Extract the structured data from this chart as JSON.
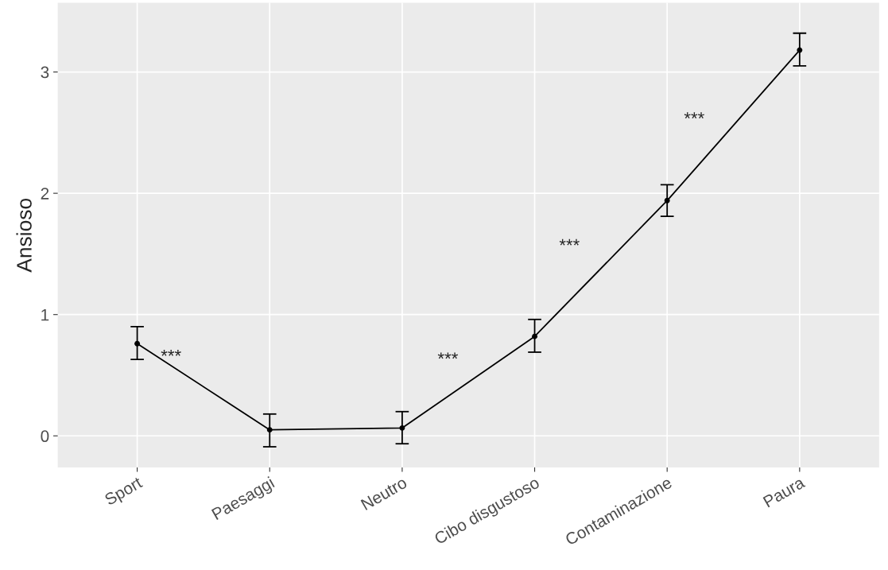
{
  "chart_data": {
    "type": "line",
    "ylabel": "Ansioso",
    "categories": [
      "Sport",
      "Paesaggi",
      "Neutro",
      "Cibo disgustoso",
      "Contaminazione",
      "Paura"
    ],
    "series": [
      {
        "color": "#000000",
        "values": [
          0.76,
          0.05,
          0.065,
          0.82,
          1.94,
          3.18
        ],
        "errors": [
          [
            0.63,
            0.9
          ],
          [
            -0.09,
            0.18
          ],
          [
            -0.065,
            0.2
          ],
          [
            0.69,
            0.96
          ],
          [
            1.81,
            2.07
          ],
          [
            3.05,
            3.32
          ]
        ]
      }
    ],
    "ylim": [
      -0.26,
      3.57
    ],
    "yticks": [
      0,
      1,
      2,
      3
    ],
    "grid": true,
    "marker": "circle",
    "line_style": "solid",
    "annotations": [
      "***",
      "***",
      "***",
      "***"
    ]
  }
}
